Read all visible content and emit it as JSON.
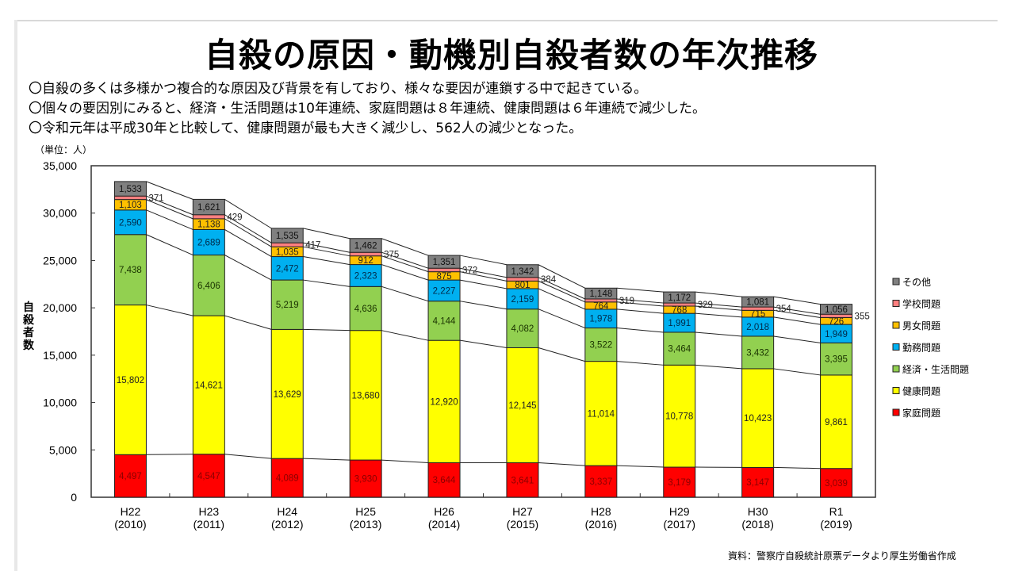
{
  "title": "自殺の原因・動機別自殺者数の年次推移",
  "bullets": [
    "〇自殺の多くは多様かつ複合的な原因及び背景を有しており、様々な要因が連鎖する中で起きている。",
    "〇個々の要因別にみると、経済・生活問題は10年連続、家庭問題は８年連続、健康問題は６年連続で減少した。",
    "〇令和元年は平成30年と比較して、健康問題が最も大きく減少し、562人の減少となった。"
  ],
  "unit_label": "（単位：人）",
  "source": "資料：警察庁自殺統計原票データより厚生労働省作成",
  "chart_data": {
    "type": "bar",
    "stacked": true,
    "title": "自殺の原因・動機別自殺者数の年次推移",
    "xlabel": "",
    "ylabel": "自殺者数",
    "ylim": [
      0,
      35000
    ],
    "yticks": [
      0,
      5000,
      10000,
      15000,
      20000,
      25000,
      30000,
      35000
    ],
    "ytick_labels": [
      "0",
      "5,000",
      "10,000",
      "15,000",
      "20,000",
      "25,000",
      "30,000",
      "35,000"
    ],
    "grid": false,
    "legend_position": "right",
    "categories": [
      "H22",
      "H23",
      "H24",
      "H25",
      "H26",
      "H27",
      "H28",
      "H29",
      "H30",
      "R1"
    ],
    "category_years": [
      "(2010)",
      "(2011)",
      "(2012)",
      "(2013)",
      "(2014)",
      "(2015)",
      "(2016)",
      "(2017)",
      "(2018)",
      "(2019)"
    ],
    "series": [
      {
        "name": "家庭問題",
        "color": "#ff0000",
        "label_color": "#8b0000",
        "values": [
          4497,
          4547,
          4089,
          3930,
          3644,
          3641,
          3337,
          3179,
          3147,
          3039
        ]
      },
      {
        "name": "健康問題",
        "color": "#ffff00",
        "label_color": "#222222",
        "values": [
          15802,
          14621,
          13629,
          13680,
          12920,
          12145,
          11014,
          10778,
          10423,
          9861
        ]
      },
      {
        "name": "経済・生活問題",
        "color": "#92d050",
        "label_color": "#1a3300",
        "values": [
          7438,
          6406,
          5219,
          4636,
          4144,
          4082,
          3522,
          3464,
          3432,
          3395
        ]
      },
      {
        "name": "勤務問題",
        "color": "#00b0f0",
        "label_color": "#002a4a",
        "values": [
          2590,
          2689,
          2472,
          2323,
          2227,
          2159,
          1978,
          1991,
          2018,
          1949
        ]
      },
      {
        "name": "男女問題",
        "color": "#ffc000",
        "label_color": "#222222",
        "values": [
          1103,
          1138,
          1035,
          912,
          875,
          801,
          764,
          768,
          715,
          726
        ]
      },
      {
        "name": "学校問題",
        "color": "#ff8080",
        "label_color": "#222222",
        "values": [
          371,
          429,
          417,
          375,
          372,
          384,
          319,
          329,
          354,
          355
        ]
      },
      {
        "name": "その他",
        "color": "#808080",
        "label_color": "#111111",
        "values": [
          1533,
          1621,
          1535,
          1462,
          1351,
          1342,
          1148,
          1172,
          1081,
          1056
        ]
      }
    ],
    "legend_order": [
      "その他",
      "学校問題",
      "男女問題",
      "勤務問題",
      "経済・生活問題",
      "健康問題",
      "家庭問題"
    ]
  }
}
